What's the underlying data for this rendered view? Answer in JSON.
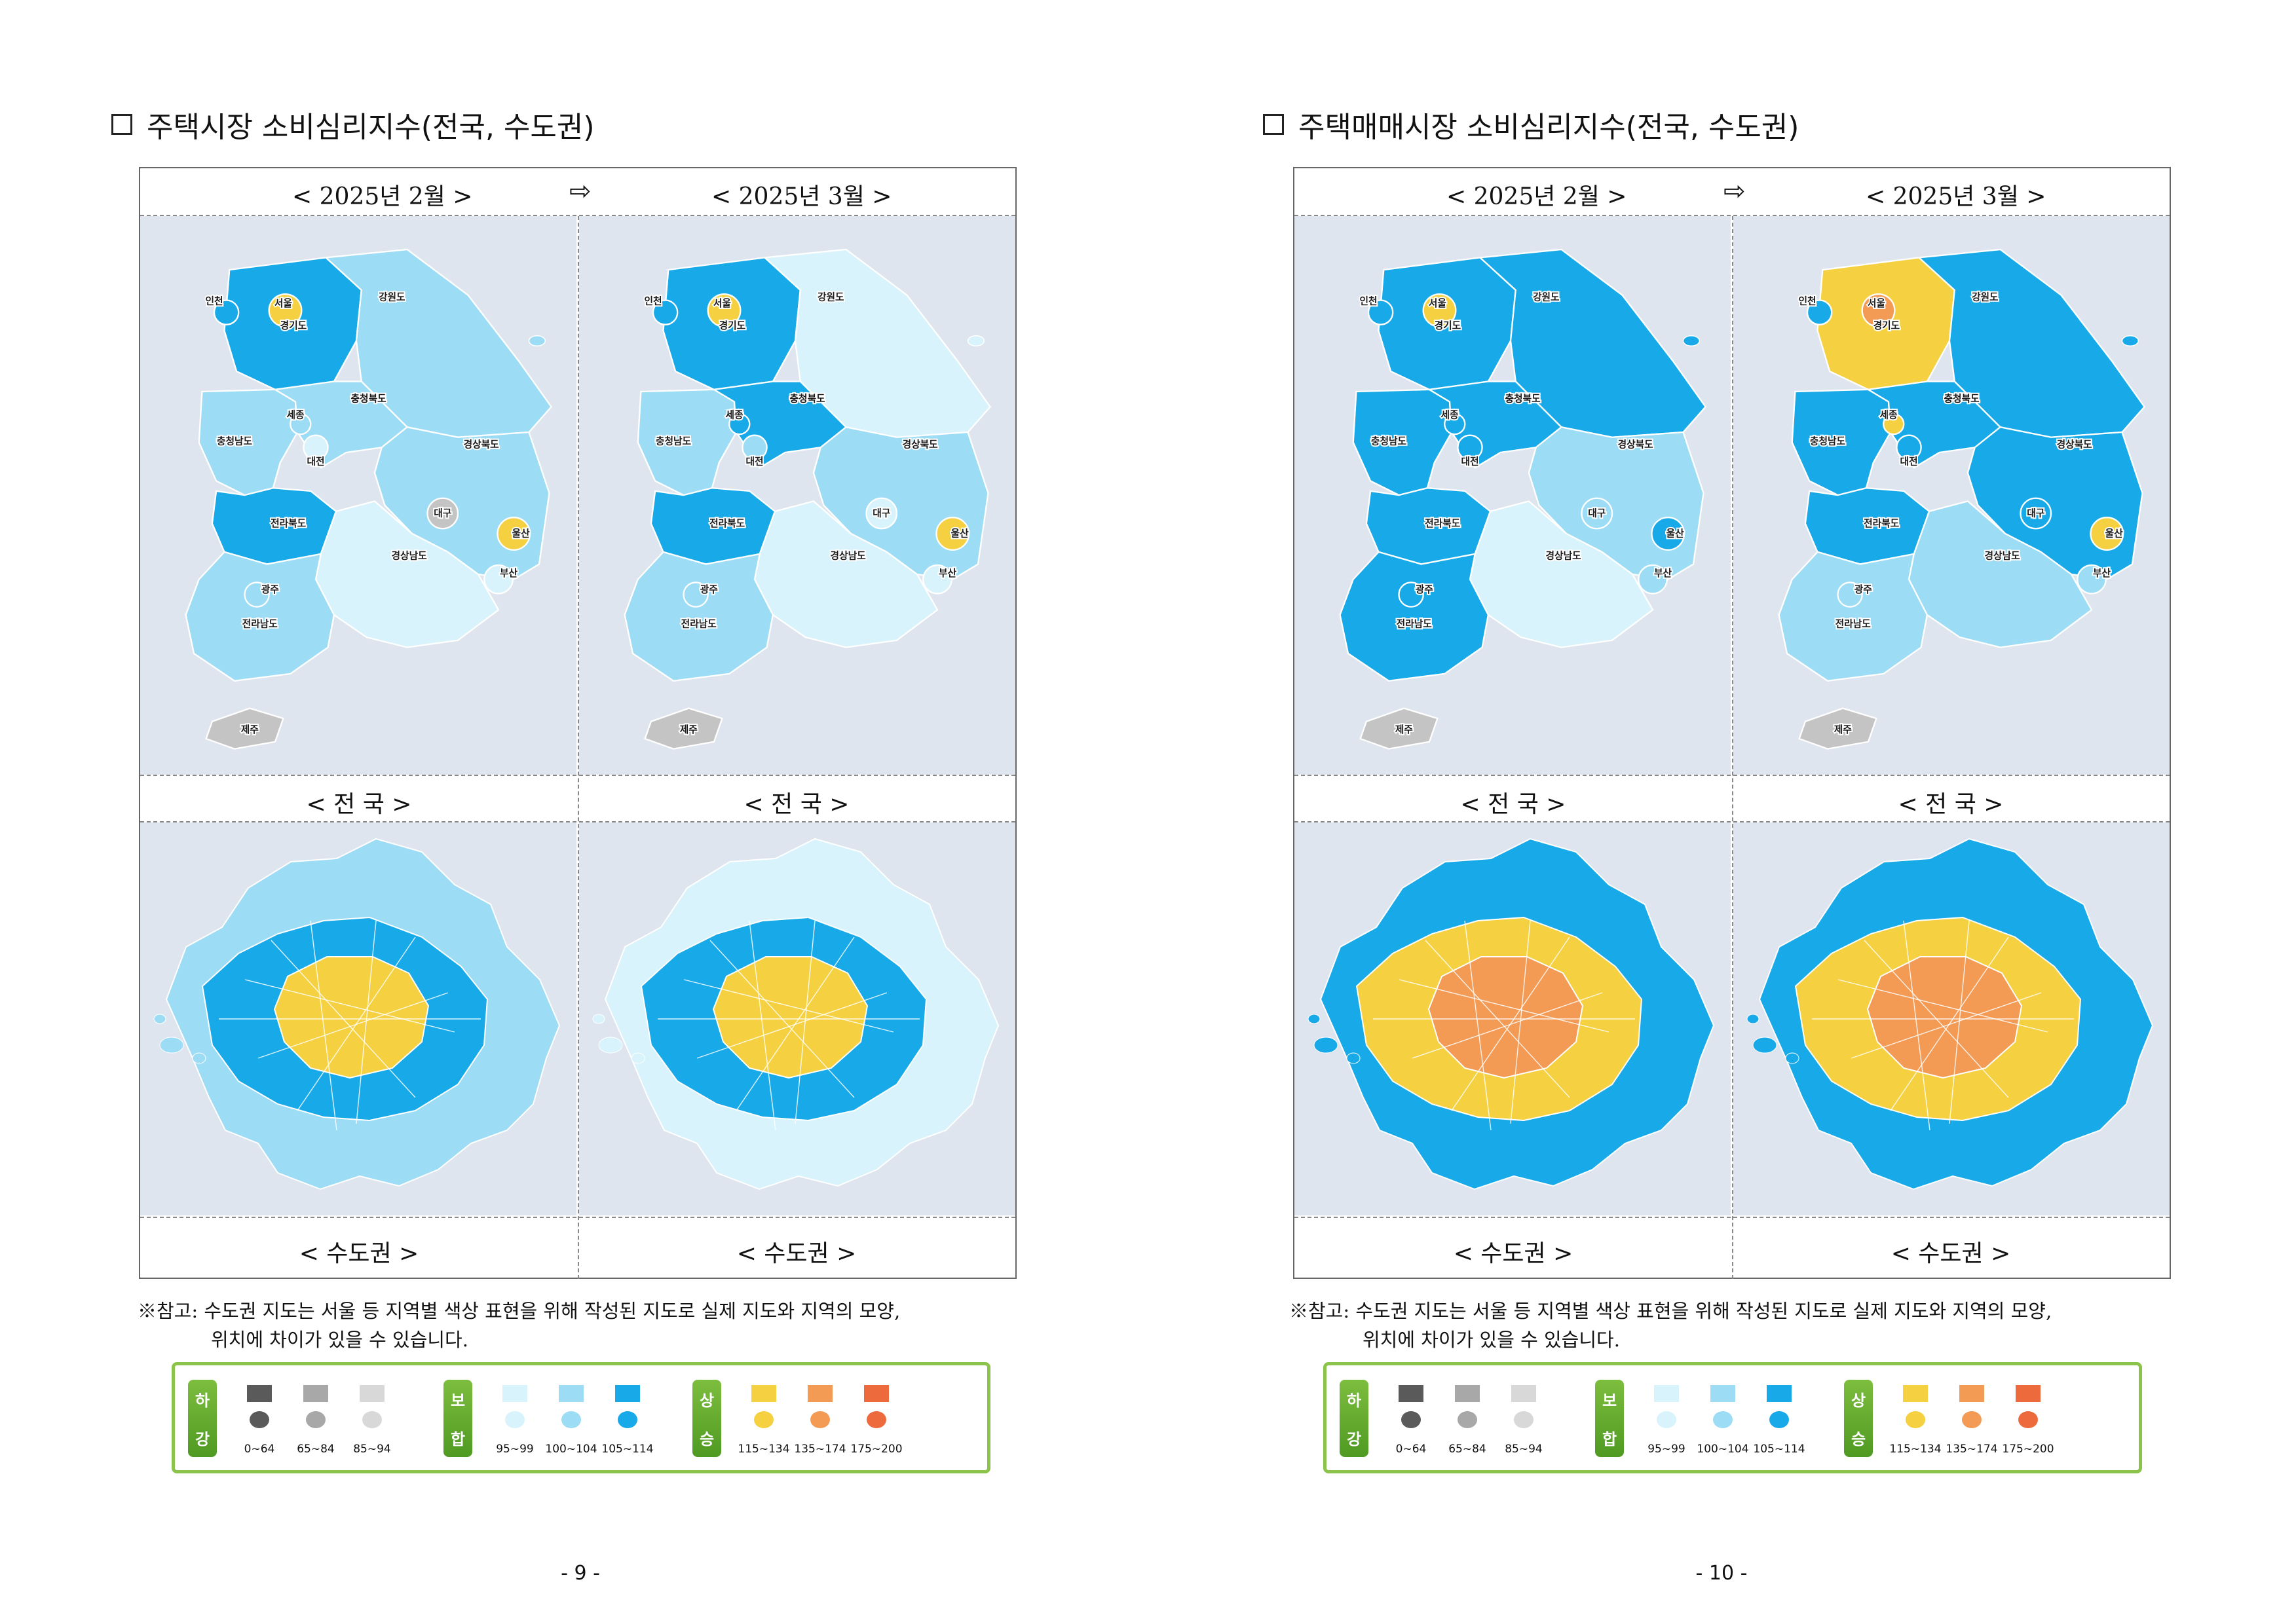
{
  "pages": [
    {
      "title": "주택시장 소비심리지수(전국, 수도권)",
      "period_from": "< 2025년 2월 >",
      "period_to": "< 2025년 3월 >",
      "caption_national": "< 전  국 >",
      "caption_capital": "< 수도권 >",
      "page_number": "- 9 -",
      "feb_colors": {
        "강원도": "#9cdcf4",
        "경기도": "#18aae8",
        "서울": "#f5d142",
        "인천": "#18aae8",
        "충청북도": "#9cdcf4",
        "세종": "#9cdcf4",
        "충청남도": "#9cdcf4",
        "대전": "#d8f3fb",
        "경상북도": "#9cdcf4",
        "대구": "#c4c4c4",
        "전라북도": "#18aae8",
        "경상남도": "#d8f3fb",
        "울산": "#f5d142",
        "부산": "#d8f3fb",
        "광주": "#9cdcf4",
        "전라남도": "#9cdcf4",
        "제주": "#c4c4c4"
      },
      "mar_colors": {
        "강원도": "#d8f3fb",
        "경기도": "#18aae8",
        "서울": "#f5d142",
        "인천": "#18aae8",
        "충청북도": "#18aae8",
        "세종": "#18aae8",
        "충청남도": "#9cdcf4",
        "대전": "#9cdcf4",
        "경상북도": "#9cdcf4",
        "대구": "#d8f3fb",
        "전라북도": "#18aae8",
        "경상남도": "#d8f3fb",
        "울산": "#f5d142",
        "부산": "#d8f3fb",
        "광주": "#9cdcf4",
        "전라남도": "#9cdcf4",
        "제주": "#c4c4c4"
      },
      "cap_feb": {
        "center": "#f5d142",
        "ring": "#18aae8",
        "outer": "#9cdcf4"
      },
      "cap_mar": {
        "center": "#f5d142",
        "ring": "#18aae8",
        "outer": "#d8f3fb"
      }
    },
    {
      "title": "주택매매시장 소비심리지수(전국, 수도권)",
      "period_from": "< 2025년 2월 >",
      "period_to": "< 2025년 3월 >",
      "caption_national": "< 전  국 >",
      "caption_capital": "< 수도권 >",
      "page_number": "- 10 -",
      "feb_colors": {
        "강원도": "#18aae8",
        "경기도": "#18aae8",
        "서울": "#f5d142",
        "인천": "#18aae8",
        "충청북도": "#18aae8",
        "세종": "#18aae8",
        "충청남도": "#18aae8",
        "대전": "#18aae8",
        "경상북도": "#9cdcf4",
        "대구": "#9cdcf4",
        "전라북도": "#18aae8",
        "경상남도": "#d8f3fb",
        "울산": "#18aae8",
        "부산": "#9cdcf4",
        "광주": "#18aae8",
        "전라남도": "#18aae8",
        "제주": "#c4c4c4"
      },
      "mar_colors": {
        "강원도": "#18aae8",
        "경기도": "#f5d142",
        "서울": "#f39a55",
        "인천": "#18aae8",
        "충청북도": "#18aae8",
        "세종": "#f5d142",
        "충청남도": "#18aae8",
        "대전": "#18aae8",
        "경상북도": "#18aae8",
        "대구": "#18aae8",
        "전라북도": "#18aae8",
        "경상남도": "#9cdcf4",
        "울산": "#f5d142",
        "부산": "#9cdcf4",
        "광주": "#9cdcf4",
        "전라남도": "#9cdcf4",
        "제주": "#c4c4c4"
      },
      "cap_feb": {
        "center": "#f39a55",
        "ring": "#f5d142",
        "outer": "#18aae8"
      },
      "cap_mar": {
        "center": "#f39a55",
        "ring": "#f5d142",
        "outer": "#18aae8"
      }
    }
  ],
  "region_labels": [
    "인천",
    "서울",
    "강원도",
    "경기도",
    "충청북도",
    "세종",
    "충청남도",
    "대전",
    "경상북도",
    "대구",
    "전라북도",
    "울산",
    "경상남도",
    "부산",
    "광주",
    "전라남도",
    "제주"
  ],
  "note_line1": "※참고: 수도권 지도는 서울 등 지역별 색상 표현을 위해 작성된 지도로 실제 지도와 지역의 모양,",
  "note_line2": "위치에 차이가 있을 수 있습니다.",
  "legend": {
    "groups": [
      {
        "chars": [
          "하",
          "강"
        ],
        "items": [
          {
            "color": "#5a5a5a",
            "range": "0~64"
          },
          {
            "color": "#a8a8a8",
            "range": "65~84"
          },
          {
            "color": "#d8d8d8",
            "range": "85~94"
          }
        ]
      },
      {
        "chars": [
          "보",
          "합"
        ],
        "items": [
          {
            "color": "#d8f3fb",
            "range": "95~99"
          },
          {
            "color": "#9cdcf4",
            "range": "100~104"
          },
          {
            "color": "#18aae8",
            "range": "105~114"
          }
        ]
      },
      {
        "chars": [
          "상",
          "승"
        ],
        "items": [
          {
            "color": "#f5d142",
            "range": "115~134"
          },
          {
            "color": "#f39a55",
            "range": "135~174"
          },
          {
            "color": "#ec6a3c",
            "range": "175~200"
          }
        ]
      }
    ]
  }
}
